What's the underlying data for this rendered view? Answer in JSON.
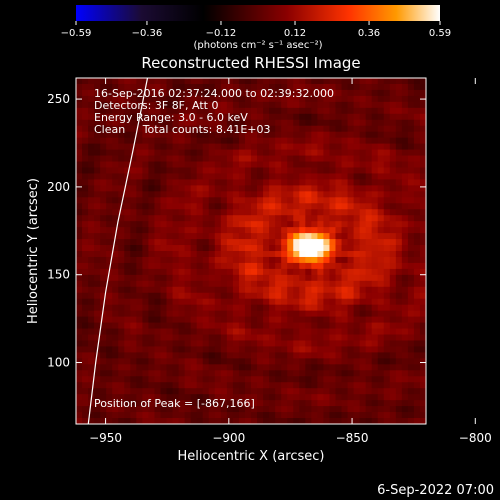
{
  "chart_data": {
    "type": "heatmap",
    "title": "Reconstructed RHESSI Image",
    "xlabel": "Heliocentric X (arcsec)",
    "ylabel": "Heliocentric Y (arcsec)",
    "xlim": [
      -962,
      -820
    ],
    "ylim": [
      65,
      262
    ],
    "x_ticks": [
      -950,
      -900,
      -850,
      -800
    ],
    "y_ticks": [
      100,
      150,
      200,
      250
    ],
    "x_tick_labels": [
      "−950",
      "−900",
      "−850",
      "−800"
    ],
    "y_tick_labels": [
      "100",
      "150",
      "200",
      "250"
    ],
    "colorbar": {
      "range": [
        -0.59,
        0.59
      ],
      "ticks": [
        -0.59,
        -0.36,
        -0.12,
        0.12,
        0.36,
        0.59
      ],
      "tick_labels": [
        "−0.59",
        "−0.36",
        "−0.12",
        "0.12",
        "0.36",
        "0.59"
      ],
      "unit_label": "(photons cm⁻² s⁻¹ asec⁻²)",
      "colors": [
        "#0000ff",
        "#1b0b33",
        "#000000",
        "#8b0000",
        "#ff3300",
        "#ff9900",
        "#ffffff"
      ]
    },
    "info_lines": [
      "16-Sep-2016 02:37:24.000 to 02:39:32.000",
      "Detectors: 3F 8F, Att 0",
      "Energy Range: 3.0 - 6.0 keV",
      "Clean     Total counts: 8.41E+03"
    ],
    "peak_label": "Position of Peak = [-867,166]",
    "peak": {
      "x": -867,
      "y": 166,
      "value": 0.59
    },
    "limb_curve": [
      [
        -957,
        65
      ],
      [
        -954,
        100
      ],
      [
        -950,
        140
      ],
      [
        -945,
        180
      ],
      [
        -939,
        220
      ],
      [
        -933,
        262
      ]
    ],
    "timestamp": "6-Sep-2022 07:00"
  }
}
